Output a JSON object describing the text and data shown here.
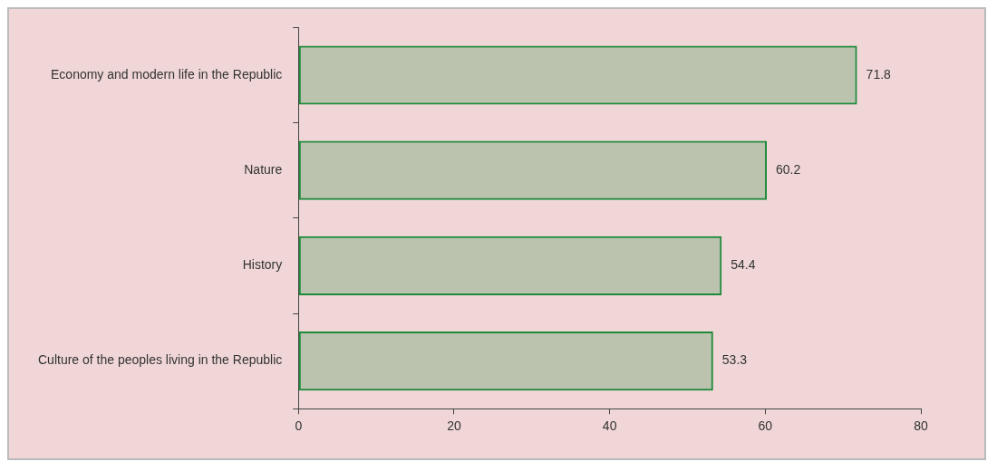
{
  "chart_data": {
    "type": "bar",
    "orientation": "horizontal",
    "categories": [
      "Economy and modern life in the Republic",
      "Nature",
      "History",
      "Culture of the peoples living in the Republic"
    ],
    "values": [
      71.8,
      60.2,
      54.4,
      53.3
    ],
    "color": "#1d8a3a",
    "xlim": [
      0,
      80
    ],
    "xticks": [
      0,
      20,
      40,
      60,
      80
    ],
    "grid": false,
    "data_labels": true
  }
}
